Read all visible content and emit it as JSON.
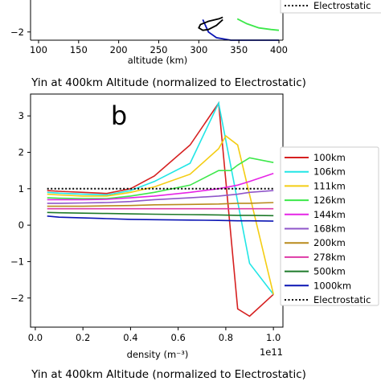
{
  "titles": {
    "middle": "Yin at 400km Altitude (normalized to Electrostatic)",
    "bottom": "Yin at 400km Altitude (normalized to Electrostatic)"
  },
  "colors": {
    "100km": "#d62020",
    "106km": "#22e6e6",
    "111km": "#f4cd13",
    "126km": "#3ce84a",
    "144km": "#e624e6",
    "168km": "#8f56c9",
    "200km": "#b88a1c",
    "278km": "#de3aa6",
    "500km": "#1e7a2a",
    "1000km": "#0a14b4",
    "Electrostatic": "#000000"
  },
  "chart_data": [
    {
      "type": "line",
      "xlabel": "altitude (km)",
      "ylabel": "",
      "xlim": [
        90,
        405
      ],
      "ylim": [
        -2.5,
        1.9
      ],
      "xticks": [
        100,
        150,
        200,
        250,
        300,
        350,
        400
      ],
      "yticks": [
        -2
      ],
      "series": [
        {
          "name": "126km",
          "color_key": "126km",
          "x": [
            348,
            360,
            375,
            390,
            400
          ],
          "y": [
            -1.2,
            -1.5,
            -1.75,
            -1.85,
            -1.9
          ]
        },
        {
          "name": "1000km",
          "color_key": "1000km",
          "x": [
            305,
            312,
            322,
            340,
            370,
            400
          ],
          "y": [
            -1.25,
            -2.0,
            -2.35,
            -2.5,
            -2.5,
            -2.5
          ]
        },
        {
          "name": "black",
          "color_key": "Electrostatic",
          "x": [
            330,
            322,
            312,
            305,
            300,
            302,
            312,
            325,
            330
          ],
          "y": [
            -1.25,
            -1.6,
            -1.85,
            -1.9,
            -1.75,
            -1.55,
            -1.35,
            -1.2,
            -1.1
          ]
        }
      ],
      "legend_visible": [
        "Electrostatic"
      ]
    },
    {
      "type": "line",
      "panel_label": "b",
      "xlabel": "density (m⁻³)",
      "ylabel": "",
      "offset_text": "1e11",
      "xlim": [
        -0.02,
        1.04
      ],
      "ylim": [
        -2.8,
        3.6
      ],
      "xticks": [
        "0.0",
        "0.2",
        "0.4",
        "0.6",
        "0.8",
        "1.0"
      ],
      "yticks": [
        "-2",
        "-1",
        "0",
        "1",
        "2",
        "3"
      ],
      "legend_position": "right",
      "series": [
        {
          "name": "100km",
          "color_key": "100km",
          "x": [
            0.05,
            0.1,
            0.2,
            0.3,
            0.4,
            0.5,
            0.65,
            0.77,
            0.85,
            0.9,
            1.0
          ],
          "y": [
            0.95,
            0.93,
            0.9,
            0.87,
            1.0,
            1.35,
            2.2,
            3.35,
            -2.3,
            -2.5,
            -1.9
          ]
        },
        {
          "name": "106km",
          "color_key": "106km",
          "x": [
            0.05,
            0.1,
            0.2,
            0.3,
            0.4,
            0.5,
            0.65,
            0.77,
            0.9,
            1.0
          ],
          "y": [
            0.9,
            0.88,
            0.85,
            0.83,
            0.95,
            1.2,
            1.7,
            3.35,
            -1.05,
            -1.9
          ]
        },
        {
          "name": "111km",
          "color_key": "111km",
          "x": [
            0.05,
            0.1,
            0.2,
            0.3,
            0.4,
            0.5,
            0.65,
            0.77,
            0.8,
            0.85,
            1.0
          ],
          "y": [
            0.85,
            0.83,
            0.8,
            0.8,
            0.9,
            1.05,
            1.4,
            2.1,
            2.45,
            2.2,
            -1.9
          ]
        },
        {
          "name": "126km",
          "color_key": "126km",
          "x": [
            0.05,
            0.1,
            0.2,
            0.3,
            0.4,
            0.5,
            0.65,
            0.77,
            0.82,
            0.85,
            0.9,
            1.0
          ],
          "y": [
            0.75,
            0.74,
            0.73,
            0.73,
            0.8,
            0.9,
            1.1,
            1.5,
            1.5,
            1.65,
            1.85,
            1.72
          ]
        },
        {
          "name": "144km",
          "color_key": "144km",
          "x": [
            0.05,
            0.1,
            0.2,
            0.3,
            0.4,
            0.5,
            0.65,
            0.77,
            0.85,
            0.9,
            1.0
          ],
          "y": [
            0.7,
            0.7,
            0.7,
            0.71,
            0.75,
            0.8,
            0.9,
            1.0,
            1.1,
            1.2,
            1.42
          ]
        },
        {
          "name": "168km",
          "color_key": "168km",
          "x": [
            0.05,
            0.1,
            0.2,
            0.3,
            0.4,
            0.5,
            0.65,
            0.77,
            0.85,
            0.9,
            1.0
          ],
          "y": [
            0.6,
            0.6,
            0.61,
            0.62,
            0.65,
            0.7,
            0.75,
            0.8,
            0.85,
            0.9,
            0.95
          ]
        },
        {
          "name": "200km",
          "color_key": "200km",
          "x": [
            0.05,
            0.1,
            0.2,
            0.3,
            0.4,
            0.5,
            0.65,
            0.77,
            0.85,
            0.9,
            1.0
          ],
          "y": [
            0.52,
            0.52,
            0.52,
            0.53,
            0.54,
            0.56,
            0.57,
            0.58,
            0.6,
            0.6,
            0.62
          ]
        },
        {
          "name": "278km",
          "color_key": "278km",
          "x": [
            0.05,
            0.1,
            0.2,
            0.3,
            0.4,
            0.5,
            0.65,
            0.77,
            0.85,
            0.9,
            1.0
          ],
          "y": [
            0.45,
            0.45,
            0.45,
            0.45,
            0.45,
            0.45,
            0.45,
            0.45,
            0.45,
            0.45,
            0.45
          ]
        },
        {
          "name": "500km",
          "color_key": "500km",
          "x": [
            0.05,
            0.1,
            0.2,
            0.3,
            0.4,
            0.5,
            0.65,
            0.77,
            0.85,
            0.9,
            1.0
          ],
          "y": [
            0.35,
            0.34,
            0.33,
            0.32,
            0.31,
            0.3,
            0.29,
            0.28,
            0.27,
            0.27,
            0.26
          ]
        },
        {
          "name": "1000km",
          "color_key": "1000km",
          "x": [
            0.05,
            0.1,
            0.2,
            0.3,
            0.4,
            0.5,
            0.65,
            0.77,
            0.85,
            0.9,
            1.0
          ],
          "y": [
            0.25,
            0.22,
            0.2,
            0.18,
            0.16,
            0.15,
            0.14,
            0.13,
            0.12,
            0.12,
            0.11
          ]
        },
        {
          "name": "Electrostatic",
          "color_key": "Electrostatic",
          "dashed": true,
          "x": [
            0.05,
            1.0
          ],
          "y": [
            1.0,
            1.0
          ]
        }
      ]
    }
  ]
}
